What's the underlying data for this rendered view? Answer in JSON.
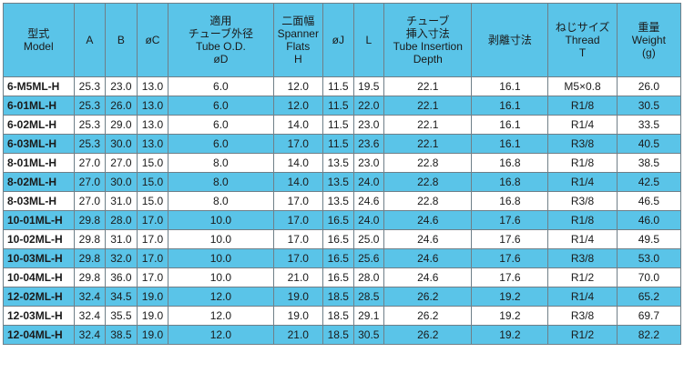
{
  "headers": [
    [
      "型式",
      "Model"
    ],
    [
      "A"
    ],
    [
      "B"
    ],
    [
      "øC"
    ],
    [
      "適用",
      "チューブ外径",
      "Tube O.D.",
      "øD"
    ],
    [
      "二面幅",
      "Spanner",
      "Flats",
      "H"
    ],
    [
      "øJ"
    ],
    [
      "L"
    ],
    [
      "チューブ",
      "挿入寸法",
      "Tube Insertion",
      "Depth"
    ],
    [
      "剥離寸法"
    ],
    [
      "ねじサイズ",
      "Thread",
      "T"
    ],
    [
      "重量",
      "Weight",
      "(g)"
    ]
  ],
  "rows": [
    [
      "6-M5ML-H",
      "25.3",
      "23.0",
      "13.0",
      "6.0",
      "12.0",
      "11.5",
      "19.5",
      "22.1",
      "16.1",
      "M5×0.8",
      "26.0"
    ],
    [
      "6-01ML-H",
      "25.3",
      "26.0",
      "13.0",
      "6.0",
      "12.0",
      "11.5",
      "22.0",
      "22.1",
      "16.1",
      "R1/8",
      "30.5"
    ],
    [
      "6-02ML-H",
      "25.3",
      "29.0",
      "13.0",
      "6.0",
      "14.0",
      "11.5",
      "23.0",
      "22.1",
      "16.1",
      "R1/4",
      "33.5"
    ],
    [
      "6-03ML-H",
      "25.3",
      "30.0",
      "13.0",
      "6.0",
      "17.0",
      "11.5",
      "23.6",
      "22.1",
      "16.1",
      "R3/8",
      "40.5"
    ],
    [
      "8-01ML-H",
      "27.0",
      "27.0",
      "15.0",
      "8.0",
      "14.0",
      "13.5",
      "23.0",
      "22.8",
      "16.8",
      "R1/8",
      "38.5"
    ],
    [
      "8-02ML-H",
      "27.0",
      "30.0",
      "15.0",
      "8.0",
      "14.0",
      "13.5",
      "24.0",
      "22.8",
      "16.8",
      "R1/4",
      "42.5"
    ],
    [
      "8-03ML-H",
      "27.0",
      "31.0",
      "15.0",
      "8.0",
      "17.0",
      "13.5",
      "24.6",
      "22.8",
      "16.8",
      "R3/8",
      "46.5"
    ],
    [
      "10-01ML-H",
      "29.8",
      "28.0",
      "17.0",
      "10.0",
      "17.0",
      "16.5",
      "24.0",
      "24.6",
      "17.6",
      "R1/8",
      "46.0"
    ],
    [
      "10-02ML-H",
      "29.8",
      "31.0",
      "17.0",
      "10.0",
      "17.0",
      "16.5",
      "25.0",
      "24.6",
      "17.6",
      "R1/4",
      "49.5"
    ],
    [
      "10-03ML-H",
      "29.8",
      "32.0",
      "17.0",
      "10.0",
      "17.0",
      "16.5",
      "25.6",
      "24.6",
      "17.6",
      "R3/8",
      "53.0"
    ],
    [
      "10-04ML-H",
      "29.8",
      "36.0",
      "17.0",
      "10.0",
      "21.0",
      "16.5",
      "28.0",
      "24.6",
      "17.6",
      "R1/2",
      "70.0"
    ],
    [
      "12-02ML-H",
      "32.4",
      "34.5",
      "19.0",
      "12.0",
      "19.0",
      "18.5",
      "28.5",
      "26.2",
      "19.2",
      "R1/4",
      "65.2"
    ],
    [
      "12-03ML-H",
      "32.4",
      "35.5",
      "19.0",
      "12.0",
      "19.0",
      "18.5",
      "29.1",
      "26.2",
      "19.2",
      "R3/8",
      "69.7"
    ],
    [
      "12-04ML-H",
      "32.4",
      "38.5",
      "19.0",
      "12.0",
      "21.0",
      "18.5",
      "30.5",
      "26.2",
      "19.2",
      "R1/2",
      "82.2"
    ]
  ],
  "colors": {
    "row_alt": "#5ac4e8",
    "row_plain": "#ffffff",
    "border": "#6f7f88"
  }
}
